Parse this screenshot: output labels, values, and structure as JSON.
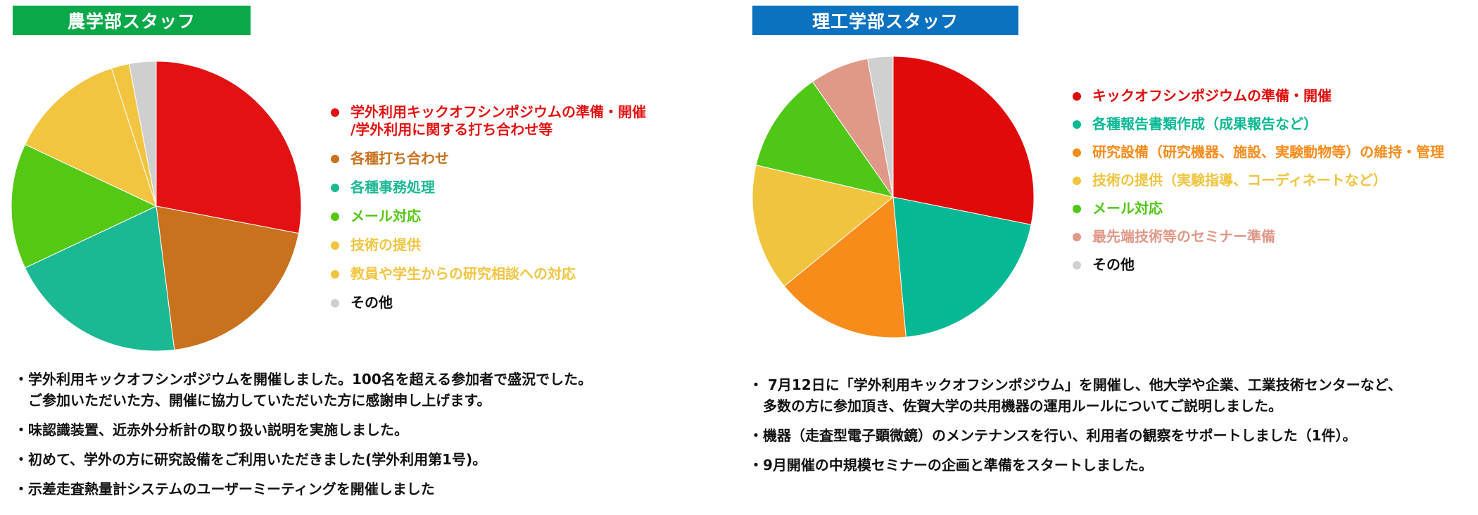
{
  "colors": {
    "left_header_bg": "#0ba84a",
    "right_header_bg": "#0b72c0"
  },
  "left": {
    "header": "農学部スタッフ",
    "notes": [
      "・学外利用キックオフシンポジウムを開催しました。100名を超える参加者で盛況でした。\n　ご参加いただいた方、開催に協力していただいた方に感謝申し上げます。",
      "・味認識装置、近赤外分析計の取り扱い説明を実施しました。",
      "・初めて、学外の方に研究設備をご利用いただきました(学外利用第1号)。",
      "・示差走査熱量計システムのユーザーミーティングを開催しました"
    ]
  },
  "right": {
    "header": "理工学部スタッフ",
    "notes": [
      "・ 7月12日に「学外利用キックオフシンポジウム」を開催し、他大学や企業、工業技術センターなど、\n　多数の方に参加頂き、佐賀大学の共用機器の運用ルールについてご説明しました。",
      "・機器（走査型電子顕微鏡）のメンテナンスを行い、利用者の観察をサポートしました（1件）。",
      "・9月開催の中規模セミナーの企画と準備をスタートしました。"
    ]
  },
  "chart_data": [
    {
      "type": "pie",
      "title": "",
      "legend_position": "right",
      "start": "top",
      "direction": "clockwise",
      "slices": [
        {
          "label": "学外利用キックオフシンポジウムの準備・開催\n/学外利用に関する打ち合わせ等",
          "value": 28,
          "color": "#e31212"
        },
        {
          "label": "各種打ち合わせ",
          "value": 20,
          "color": "#c8721e"
        },
        {
          "label": "各種事務処理",
          "value": 20,
          "color": "#1bb894"
        },
        {
          "label": "メール対応",
          "value": 14,
          "color": "#55c814"
        },
        {
          "label": "技術の提供",
          "value": 13,
          "color": "#f2c540"
        },
        {
          "label": "教員や学生からの研究相談への対応",
          "value": 2,
          "color": "#f2c540"
        },
        {
          "label": "その他",
          "value": 3,
          "color": "#cfcfcf"
        }
      ]
    },
    {
      "type": "pie",
      "title": "",
      "legend_position": "right",
      "start": "top",
      "direction": "clockwise",
      "slices": [
        {
          "label": "キックオフシンポジウムの準備・開催",
          "value": 29,
          "color": "#e00a0a"
        },
        {
          "label": "各種報告書類作成（成果報告など）",
          "value": 21,
          "color": "#07b894"
        },
        {
          "label": "研究設備（研究機器、施設、実験動物等）の維持・管理",
          "value": 16,
          "color": "#f78c1b"
        },
        {
          "label": "技術の提供（実験指導、コーディネートなど）",
          "value": 15,
          "color": "#f0c43e"
        },
        {
          "label": "メール対応",
          "value": 12,
          "color": "#4fc716"
        },
        {
          "label": "最先端技術等のセミナー準備",
          "value": 7,
          "color": "#e09888"
        },
        {
          "label": "その他",
          "value": 3,
          "color": "#d0d0d0"
        }
      ]
    }
  ]
}
